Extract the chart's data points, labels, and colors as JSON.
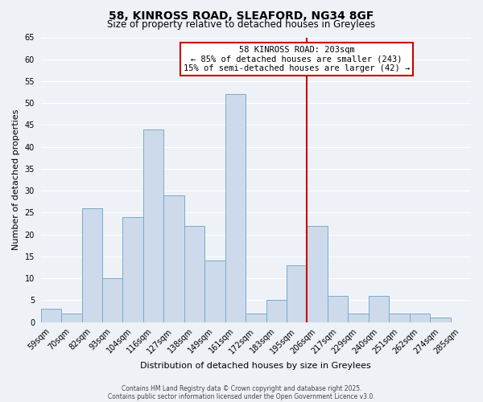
{
  "title_line1": "58, KINROSS ROAD, SLEAFORD, NG34 8GF",
  "title_line2": "Size of property relative to detached houses in Greylees",
  "xlabel": "Distribution of detached houses by size in Greylees",
  "ylabel": "Number of detached properties",
  "categories": [
    "59sqm",
    "70sqm",
    "82sqm",
    "93sqm",
    "104sqm",
    "116sqm",
    "127sqm",
    "138sqm",
    "149sqm",
    "161sqm",
    "172sqm",
    "183sqm",
    "195sqm",
    "206sqm",
    "217sqm",
    "229sqm",
    "240sqm",
    "251sqm",
    "262sqm",
    "274sqm",
    "285sqm"
  ],
  "values": [
    3,
    2,
    26,
    10,
    24,
    44,
    29,
    22,
    14,
    52,
    2,
    5,
    13,
    22,
    6,
    2,
    6,
    2,
    2,
    1,
    0
  ],
  "bar_color": "#ccdaeb",
  "bar_edge_color": "#7aaacb",
  "background_color": "#eef2f7",
  "grid_color": "#ffffff",
  "vline_color": "#cc0000",
  "vline_index": 13,
  "annotation_text_line1": "58 KINROSS ROAD: 203sqm",
  "annotation_text_line2": "← 85% of detached houses are smaller (243)",
  "annotation_text_line3": "15% of semi-detached houses are larger (42) →",
  "ylim": [
    0,
    65
  ],
  "yticks": [
    0,
    5,
    10,
    15,
    20,
    25,
    30,
    35,
    40,
    45,
    50,
    55,
    60,
    65
  ],
  "footer_line1": "Contains HM Land Registry data © Crown copyright and database right 2025.",
  "footer_line2": "Contains public sector information licensed under the Open Government Licence v3.0.",
  "title_fontsize": 10,
  "subtitle_fontsize": 8.5,
  "axis_label_fontsize": 8,
  "tick_fontsize": 7,
  "annotation_fontsize": 7.5,
  "footer_fontsize": 5.5
}
